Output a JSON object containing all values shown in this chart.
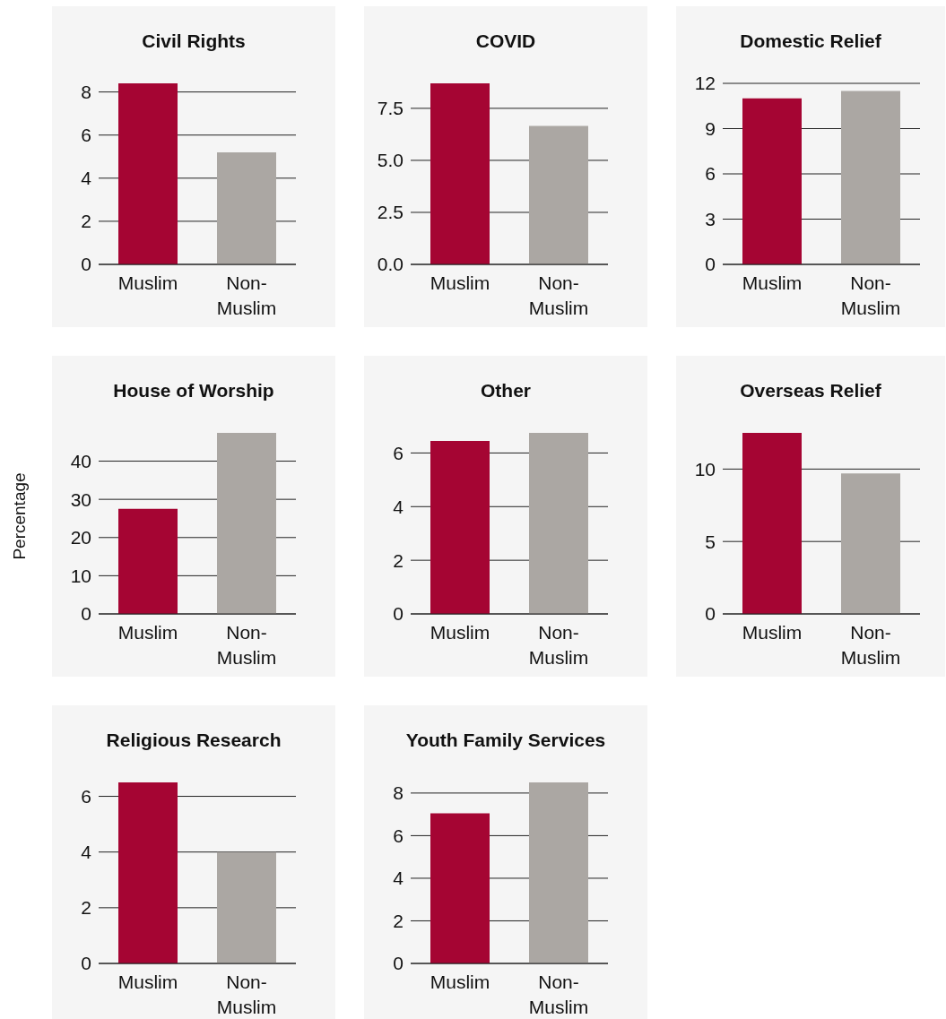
{
  "chart_data": [
    {
      "type": "bar",
      "title": "Civil Rights",
      "categories": [
        "Muslim",
        "Non-Muslim"
      ],
      "values": [
        8.4,
        5.2
      ],
      "colors": [
        "#a50533",
        "#aba7a3"
      ],
      "ylim": [
        0,
        8.4
      ],
      "yticks": [
        0,
        2,
        4,
        6,
        8
      ],
      "grid": "y",
      "legend": false
    },
    {
      "type": "bar",
      "title": "COVID",
      "categories": [
        "Muslim",
        "Non-Muslim"
      ],
      "values": [
        8.7,
        6.65
      ],
      "colors": [
        "#a50533",
        "#aba7a3"
      ],
      "ylim": [
        0,
        8.7
      ],
      "yticks": [
        {
          "value": 0,
          "label": "0.0"
        },
        2.5,
        {
          "value": 5,
          "label": "5.0"
        },
        7.5
      ],
      "grid": "y",
      "legend": false
    },
    {
      "type": "bar",
      "title": "Domestic Relief",
      "categories": [
        "Muslim",
        "Non-Muslim"
      ],
      "values": [
        11.0,
        11.5
      ],
      "colors": [
        "#a50533",
        "#aba7a3"
      ],
      "ylim": [
        0,
        12
      ],
      "yticks": [
        0,
        3,
        6,
        9,
        12
      ],
      "grid": "y",
      "legend": false
    },
    {
      "type": "bar",
      "title": "House of Worship",
      "ylabel": "Percentage",
      "categories": [
        "Muslim",
        "Non-Muslim"
      ],
      "values": [
        27.5,
        47.4
      ],
      "colors": [
        "#a50533",
        "#aba7a3"
      ],
      "ylim": [
        0,
        47.4
      ],
      "yticks": [
        0,
        10,
        20,
        30,
        40
      ],
      "grid": "y",
      "legend": false
    },
    {
      "type": "bar",
      "title": "Other",
      "categories": [
        "Muslim",
        "Non-Muslim"
      ],
      "values": [
        6.45,
        6.75
      ],
      "colors": [
        "#a50533",
        "#aba7a3"
      ],
      "ylim": [
        0,
        6.75
      ],
      "yticks": [
        0,
        2,
        4,
        6
      ],
      "grid": "y",
      "legend": false
    },
    {
      "type": "bar",
      "title": "Overseas Relief",
      "categories": [
        "Muslim",
        "Non-Muslim"
      ],
      "values": [
        12.5,
        9.7
      ],
      "colors": [
        "#a50533",
        "#aba7a3"
      ],
      "ylim": [
        0,
        12.5
      ],
      "yticks": [
        0,
        5,
        10
      ],
      "grid": "y",
      "legend": false
    },
    {
      "type": "bar",
      "title": "Religious Research",
      "categories": [
        "Muslim",
        "Non-Muslim"
      ],
      "values": [
        6.5,
        4.0
      ],
      "colors": [
        "#a50533",
        "#aba7a3"
      ],
      "ylim": [
        0,
        6.5
      ],
      "yticks": [
        0,
        2,
        4,
        6
      ],
      "grid": "y",
      "legend": false
    },
    {
      "type": "bar",
      "title": "Youth Family Services",
      "categories": [
        "Muslim",
        "Non-Muslim"
      ],
      "values": [
        7.05,
        8.5
      ],
      "colors": [
        "#a50533",
        "#aba7a3"
      ],
      "ylim": [
        0,
        8.5
      ],
      "yticks": [
        0,
        2,
        4,
        6,
        8
      ],
      "grid": "y",
      "legend": false
    }
  ]
}
